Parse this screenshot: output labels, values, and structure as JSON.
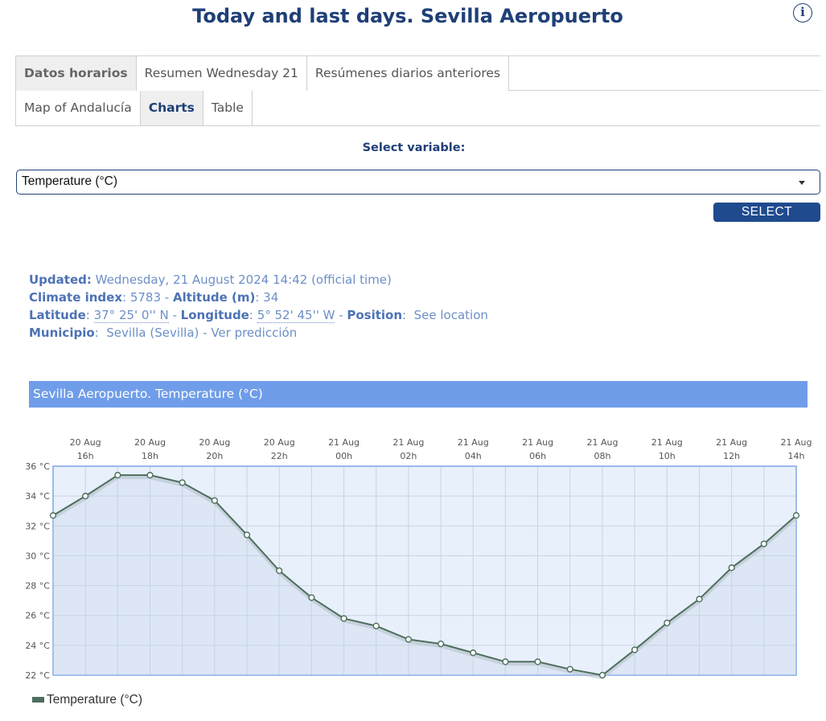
{
  "header": {
    "title": "Today and last days. Sevilla Aeropuerto",
    "info_icon": "info-icon"
  },
  "tabs_top": [
    "Datos horarios",
    "Resumen Wednesday 21",
    "Resúmenes diarios anteriores"
  ],
  "tabs_sub": [
    "Map of Andalucía",
    "Charts",
    "Table"
  ],
  "selector": {
    "label": "Select variable:",
    "value": "Temperature (°C)",
    "button": "SELECT"
  },
  "station": {
    "updated_label": "Updated:",
    "updated_value": "Wednesday, 21 August 2024 14:42 (official time)",
    "climate_label": "Climate index",
    "climate_value": ": 5783 - ",
    "altitude_label": "Altitude (m)",
    "altitude_value": ": 34",
    "latitude_label": "Latitude",
    "latitude_value": "37° 25' 0'' N",
    "longitude_label": "Longitude",
    "longitude_value": "5° 52' 45'' W",
    "position_label": "Position",
    "position_link": "See location",
    "municipio_label": "Municipio",
    "municipio_value": "Sevilla (Sevilla) - Ver predicción"
  },
  "chart_data": {
    "type": "line",
    "title": "Sevilla Aeropuerto. Temperature (°C)",
    "x_ticks": [
      [
        "20 Aug",
        "16h"
      ],
      [
        "20 Aug",
        "18h"
      ],
      [
        "20 Aug",
        "20h"
      ],
      [
        "20 Aug",
        "22h"
      ],
      [
        "21 Aug",
        "00h"
      ],
      [
        "21 Aug",
        "02h"
      ],
      [
        "21 Aug",
        "04h"
      ],
      [
        "21 Aug",
        "06h"
      ],
      [
        "21 Aug",
        "08h"
      ],
      [
        "21 Aug",
        "10h"
      ],
      [
        "21 Aug",
        "12h"
      ],
      [
        "21 Aug",
        "14h"
      ]
    ],
    "y_ticks": [
      "36 °C",
      "34 °C",
      "32 °C",
      "30 °C",
      "28 °C",
      "26 °C",
      "24 °C",
      "22 °C"
    ],
    "ylim": [
      22,
      36
    ],
    "series": [
      {
        "name": "Temperature (°C)",
        "x": [
          "20 Aug 15h",
          "20 Aug 16h",
          "20 Aug 17h",
          "20 Aug 18h",
          "20 Aug 19h",
          "20 Aug 20h",
          "20 Aug 21h",
          "20 Aug 22h",
          "20 Aug 23h",
          "21 Aug 00h",
          "21 Aug 01h",
          "21 Aug 02h",
          "21 Aug 03h",
          "21 Aug 04h",
          "21 Aug 05h",
          "21 Aug 06h",
          "21 Aug 07h",
          "21 Aug 08h",
          "21 Aug 09h",
          "21 Aug 10h",
          "21 Aug 11h",
          "21 Aug 12h",
          "21 Aug 13h",
          "21 Aug 14h"
        ],
        "values": [
          32.7,
          34.0,
          35.4,
          35.4,
          34.9,
          33.7,
          31.4,
          29.0,
          27.2,
          25.8,
          25.3,
          24.4,
          24.1,
          23.5,
          22.9,
          22.9,
          22.4,
          22.0,
          23.7,
          25.5,
          27.1,
          29.2,
          30.8,
          32.7
        ],
        "color": "#4d6e5c"
      }
    ],
    "grid": true,
    "legend": "bottom-left",
    "plot_background": "#e8f0fc",
    "plot_border": "#7fa6e6"
  }
}
